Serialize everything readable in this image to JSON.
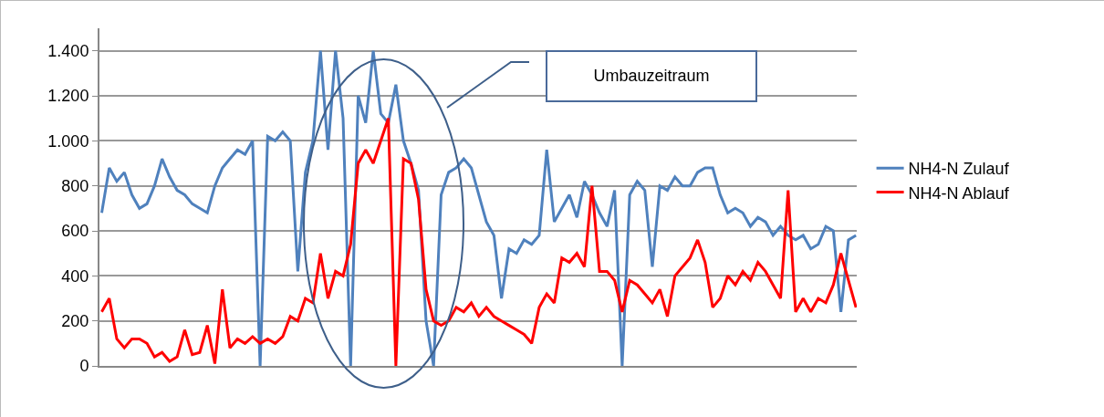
{
  "chart_data": {
    "type": "line",
    "categories": [
      null,
      null,
      null,
      null,
      null,
      null,
      null,
      null,
      null,
      null,
      null,
      null,
      null,
      null,
      null,
      null,
      null,
      null,
      null,
      null,
      null,
      null,
      null,
      null,
      null,
      null,
      null,
      null,
      null,
      null,
      null,
      null,
      null,
      null,
      null,
      null,
      null,
      null,
      null,
      null,
      null,
      null,
      null,
      null,
      null,
      null,
      null,
      null,
      null,
      null,
      null,
      null,
      null,
      null,
      null,
      null,
      null,
      null,
      null,
      null,
      null,
      null,
      null,
      null,
      null,
      null,
      null,
      null,
      null,
      null,
      null,
      null,
      null,
      null,
      null,
      null,
      null,
      null,
      null,
      null,
      null,
      null,
      null,
      null,
      null,
      null,
      null,
      null,
      null,
      null,
      null,
      null,
      null,
      null,
      null,
      null,
      null,
      null,
      null,
      null,
      null
    ],
    "series": [
      {
        "name": "NH4-N Zulauf",
        "color": "#4f81bd",
        "values": [
          680,
          880,
          820,
          860,
          760,
          700,
          720,
          800,
          920,
          840,
          780,
          760,
          720,
          700,
          680,
          800,
          880,
          920,
          960,
          940,
          1000,
          0,
          1020,
          1000,
          1040,
          1000,
          420,
          860,
          1000,
          1400,
          960,
          1400,
          1100,
          0,
          1200,
          1080,
          1400,
          1120,
          1080,
          1250,
          1000,
          900,
          780,
          200,
          0,
          760,
          860,
          880,
          920,
          880,
          760,
          640,
          580,
          300,
          520,
          500,
          560,
          540,
          580,
          960,
          640,
          700,
          760,
          660,
          820,
          760,
          680,
          620,
          780,
          0,
          760,
          820,
          780,
          440,
          800,
          780,
          840,
          800,
          800,
          860,
          880,
          880,
          760,
          680,
          700,
          680,
          620,
          660,
          640,
          580,
          620,
          580,
          560,
          580,
          520,
          540,
          620,
          600,
          240,
          560,
          580
        ]
      },
      {
        "name": "NH4-N Ablauf",
        "color": "#ff0000",
        "values": [
          240,
          300,
          120,
          80,
          120,
          120,
          100,
          40,
          60,
          20,
          40,
          160,
          50,
          60,
          180,
          10,
          340,
          80,
          120,
          100,
          130,
          100,
          120,
          100,
          130,
          220,
          200,
          300,
          280,
          500,
          300,
          420,
          400,
          540,
          900,
          960,
          900,
          1000,
          1100,
          0,
          920,
          900,
          740,
          340,
          200,
          180,
          200,
          260,
          240,
          280,
          220,
          260,
          220,
          200,
          180,
          160,
          140,
          100,
          260,
          320,
          280,
          480,
          460,
          500,
          440,
          800,
          420,
          420,
          380,
          240,
          380,
          360,
          320,
          280,
          340,
          220,
          400,
          440,
          480,
          560,
          460,
          260,
          300,
          400,
          360,
          420,
          380,
          460,
          420,
          360,
          300,
          780,
          240,
          300,
          240,
          300,
          280,
          360,
          500,
          380,
          260
        ]
      }
    ],
    "ylim": [
      0,
      1500
    ],
    "yticks": [
      0,
      200,
      400,
      600,
      800,
      {
        "value": 1000,
        "label": "1.000"
      },
      {
        "value": 1200,
        "label": "1.200"
      },
      {
        "value": 1400,
        "label": "1.400"
      }
    ],
    "grid": "y",
    "legend": "right",
    "tick_labels": "y",
    "marker": "none",
    "line_style": "solid",
    "annotations": [
      "Umbauzeitraum"
    ]
  }
}
